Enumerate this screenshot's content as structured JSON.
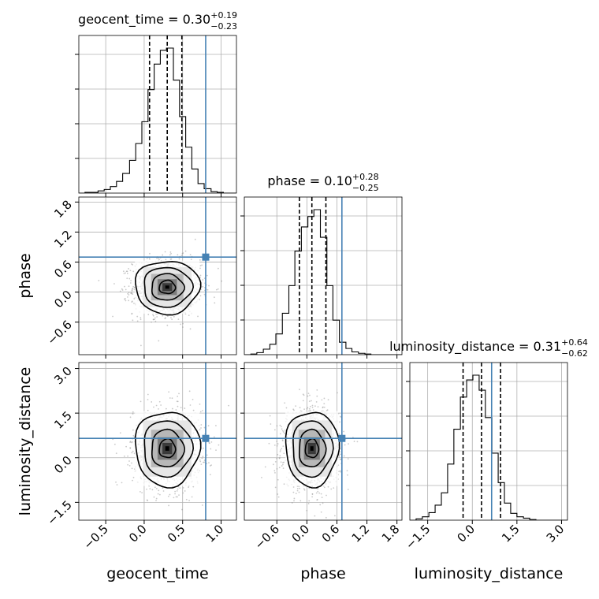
{
  "chart_data": {
    "type": "corner",
    "parameters": [
      {
        "name": "geocent_time",
        "label": "geocent_time",
        "range": [
          -0.85,
          1.2
        ],
        "ticks": [
          -0.5,
          0.0,
          0.5,
          1.0
        ],
        "tick_labels": [
          "−0.5",
          "0.0",
          "0.5",
          "1.0"
        ],
        "median": 0.3,
        "plus": 0.19,
        "minus": 0.23,
        "truth": 0.8,
        "title_prefix": "geocent_time = 0.30",
        "title_sup": "+0.19",
        "title_sub": "−0.23",
        "hist_edges": [
          -0.85,
          -0.77,
          -0.68,
          -0.6,
          -0.52,
          -0.44,
          -0.36,
          -0.28,
          -0.19,
          -0.11,
          -0.03,
          0.05,
          0.13,
          0.21,
          0.29,
          0.38,
          0.46,
          0.54,
          0.62,
          0.7,
          0.78,
          0.87,
          0.95,
          1.03,
          1.11,
          1.2
        ],
        "hist_counts": [
          0,
          1,
          1,
          3,
          5,
          9,
          16,
          27,
          45,
          68,
          98,
          142,
          177,
          196,
          199,
          155,
          105,
          63,
          33,
          13,
          6,
          2,
          1,
          0,
          0
        ]
      },
      {
        "name": "phase",
        "label": "phase",
        "range": [
          -1.25,
          1.9
        ],
        "ticks": [
          -0.6,
          0.0,
          0.6,
          1.2,
          1.8
        ],
        "tick_labels": [
          "−0.6",
          "0.0",
          "0.6",
          "1.2",
          "1.8"
        ],
        "median": 0.1,
        "plus": 0.28,
        "minus": 0.25,
        "truth": 0.7,
        "title_prefix": "phase = 0.10",
        "title_sup": "+0.28",
        "title_sub": "−0.25",
        "hist_edges": [
          -1.25,
          -1.12,
          -1.0,
          -0.87,
          -0.74,
          -0.62,
          -0.49,
          -0.36,
          -0.24,
          -0.11,
          0.02,
          0.14,
          0.27,
          0.4,
          0.52,
          0.65,
          0.78,
          0.9,
          1.03,
          1.16,
          1.28,
          1.41,
          1.54,
          1.66,
          1.79,
          1.9
        ],
        "hist_counts": [
          0,
          1,
          3,
          8,
          15,
          30,
          60,
          100,
          150,
          185,
          200,
          210,
          170,
          100,
          50,
          18,
          9,
          4,
          2,
          1,
          0,
          0,
          0,
          0,
          0
        ]
      },
      {
        "name": "luminosity_distance",
        "label": "luminosity_distance",
        "range": [
          -2.1,
          3.2
        ],
        "ticks": [
          -1.5,
          0.0,
          1.5,
          3.0
        ],
        "tick_labels": [
          "−1.5",
          "0.0",
          "1.5",
          "3.0"
        ],
        "median": 0.31,
        "plus": 0.64,
        "minus": 0.62,
        "truth": 0.65,
        "title_prefix": "luminosity_distance = 0.31",
        "title_sup": "+0.64",
        "title_sub": "−0.62",
        "hist_edges": [
          -2.1,
          -1.89,
          -1.68,
          -1.46,
          -1.25,
          -1.04,
          -0.83,
          -0.62,
          -0.4,
          -0.19,
          0.02,
          0.23,
          0.44,
          0.66,
          0.87,
          1.08,
          1.29,
          1.5,
          1.72,
          1.93,
          2.14,
          2.35,
          2.56,
          2.78,
          2.99,
          3.2
        ],
        "hist_counts": [
          0,
          2,
          5,
          11,
          22,
          40,
          82,
          133,
          180,
          205,
          212,
          190,
          150,
          98,
          55,
          25,
          10,
          5,
          3,
          1,
          0,
          0,
          0,
          0,
          0
        ]
      }
    ],
    "truth_color": "#4682b4",
    "quantile_line_style": "dashed"
  }
}
